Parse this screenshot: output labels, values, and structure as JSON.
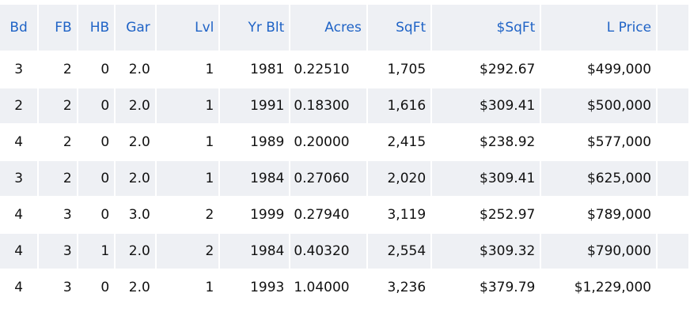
{
  "table": {
    "headers": [
      "Bd",
      "FB",
      "HB",
      "Gar",
      "Lvl",
      "Yr Blt",
      "Acres",
      "SqFt",
      "$SqFt",
      "L Price"
    ],
    "rows": [
      [
        "3",
        "2",
        "0",
        "2.0",
        "1",
        "1981",
        "0.22510",
        "1,705",
        "$292.67",
        "$499,000"
      ],
      [
        "2",
        "2",
        "0",
        "2.0",
        "1",
        "1991",
        "0.18300",
        "1,616",
        "$309.41",
        "$500,000"
      ],
      [
        "4",
        "2",
        "0",
        "2.0",
        "1",
        "1989",
        "0.20000",
        "2,415",
        "$238.92",
        "$577,000"
      ],
      [
        "3",
        "2",
        "0",
        "2.0",
        "1",
        "1984",
        "0.27060",
        "2,020",
        "$309.41",
        "$625,000"
      ],
      [
        "4",
        "3",
        "0",
        "3.0",
        "2",
        "1999",
        "0.27940",
        "3,119",
        "$252.97",
        "$789,000"
      ],
      [
        "4",
        "3",
        "1",
        "2.0",
        "2",
        "1984",
        "0.40320",
        "2,554",
        "$309.32",
        "$790,000"
      ],
      [
        "4",
        "3",
        "0",
        "2.0",
        "1",
        "1993",
        "1.04000",
        "3,236",
        "$379.79",
        "$1,229,000"
      ]
    ]
  }
}
